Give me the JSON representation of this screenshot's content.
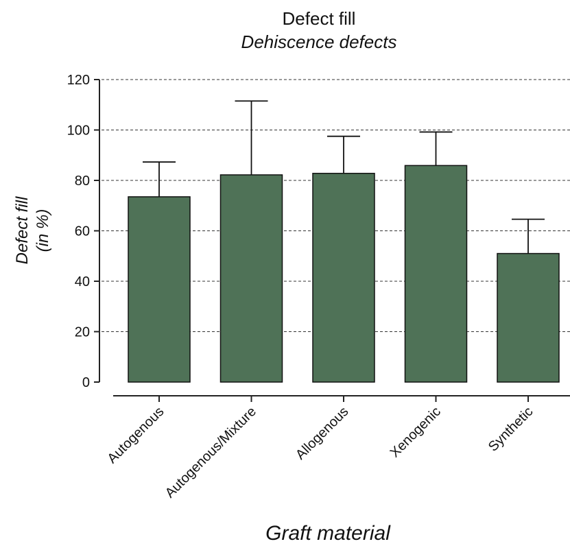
{
  "chart_data": {
    "type": "bar",
    "title": "Defect fill",
    "subtitle": "Dehiscence defects",
    "ylabel_line1": "Defect fill",
    "ylabel_line2": "(in %)",
    "xlabel": "Graft material",
    "categories": [
      "Autogenous",
      "Autogenous/Mixture",
      "Allogenous",
      "Xenogenic",
      "Synthetic"
    ],
    "values": [
      73.5,
      82.2,
      82.8,
      85.9,
      51.0
    ],
    "error_upper": [
      87.3,
      111.5,
      97.5,
      99.2,
      64.6
    ],
    "ylim": [
      0,
      120
    ],
    "yticks": [
      0,
      20,
      40,
      60,
      80,
      100,
      120
    ],
    "grid": true,
    "bar_color": "#4f7257"
  }
}
